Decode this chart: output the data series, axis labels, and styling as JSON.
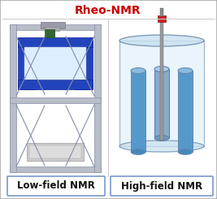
{
  "title": "Rheo-NMR",
  "title_color": "#cc0000",
  "title_fontsize": 10,
  "title_fontweight": "bold",
  "left_label": "Low-field NMR",
  "right_label": "High-field NMR",
  "label_fontsize": 8.5,
  "label_fontweight": "bold",
  "bg_outer": "#e8e8e8",
  "panel_bg": "#ffffff",
  "border_color": "#aaaaaa",
  "label_box_color": "#ffffff",
  "label_box_edge": "#7799cc",
  "fig_width": 2.67,
  "fig_height": 2.45,
  "title_bar_height": 0.105,
  "frame_gray": "#b8bec8",
  "frame_dark": "#888ea8",
  "blue_magnet": "#2244bb",
  "blue_magnet_dark": "#112299",
  "blue_light": "#5599cc",
  "blue_lighter": "#88bbdd",
  "cyl_fill": "#cce0f0",
  "cyl_edge": "#6688aa"
}
